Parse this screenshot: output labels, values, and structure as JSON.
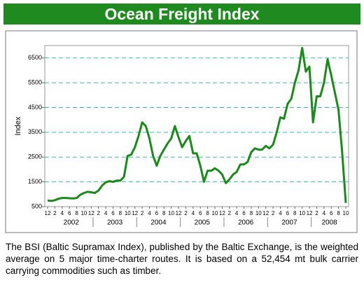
{
  "title": "Ocean Freight Index",
  "description": "The BSI (Baltic Supramax Index), published by the Baltic Exchange, is the weighted average on 5 major time-charter routes. It is based on a 52,454 mt bulk carrier carrying commodities such as timber.",
  "chart_data": {
    "type": "line",
    "ylabel": "Index",
    "color": "#1a8a1a",
    "grid": true,
    "categories": [
      "12",
      null,
      "2",
      null,
      "4",
      null,
      "6",
      null,
      "8",
      null,
      "10",
      null,
      "12",
      null,
      "2",
      null,
      "4",
      null,
      "6",
      null,
      "8",
      null,
      "10",
      null,
      "12",
      null,
      "2",
      null,
      "4",
      null,
      "6",
      null,
      "8",
      null,
      "10",
      null,
      "12",
      null,
      "2",
      null,
      "4",
      null,
      "6",
      null,
      "8",
      null,
      "10",
      null,
      "12",
      null,
      "2",
      null,
      "4",
      null,
      "6",
      null,
      "8",
      null,
      "10",
      null,
      "12",
      null,
      "2",
      null,
      "4",
      null,
      "6",
      null,
      "8",
      null,
      "10",
      null,
      "12",
      null,
      "2",
      null,
      "4",
      null,
      "6",
      null,
      "8",
      null,
      "10"
    ],
    "years": [
      "2002",
      "2003",
      "2004",
      "2005",
      "2006",
      "2007",
      "2008"
    ],
    "values": [
      750,
      730,
      760,
      820,
      850,
      850,
      840,
      830,
      850,
      980,
      1050,
      1100,
      1080,
      1050,
      1150,
      1350,
      1480,
      1530,
      1500,
      1550,
      1550,
      1700,
      2550,
      2600,
      2900,
      3350,
      3900,
      3750,
      3250,
      2550,
      2150,
      2550,
      2800,
      3050,
      3250,
      3750,
      3300,
      2900,
      3150,
      3350,
      2650,
      2650,
      2150,
      1500,
      1950,
      1950,
      2050,
      1950,
      1800,
      1450,
      1600,
      1800,
      1900,
      2200,
      2200,
      2300,
      2700,
      2850,
      2800,
      2800,
      2950,
      2850,
      3000,
      3500,
      4100,
      4050,
      4650,
      4850,
      5500,
      6000,
      6900,
      5950,
      6150,
      3900,
      4950,
      4950,
      5500,
      6450,
      5800,
      5100,
      4400,
      2700,
      650
    ],
    "ylim": [
      500,
      7000
    ],
    "yticks": [
      500,
      1500,
      2500,
      3500,
      4500,
      5500,
      6500
    ]
  }
}
